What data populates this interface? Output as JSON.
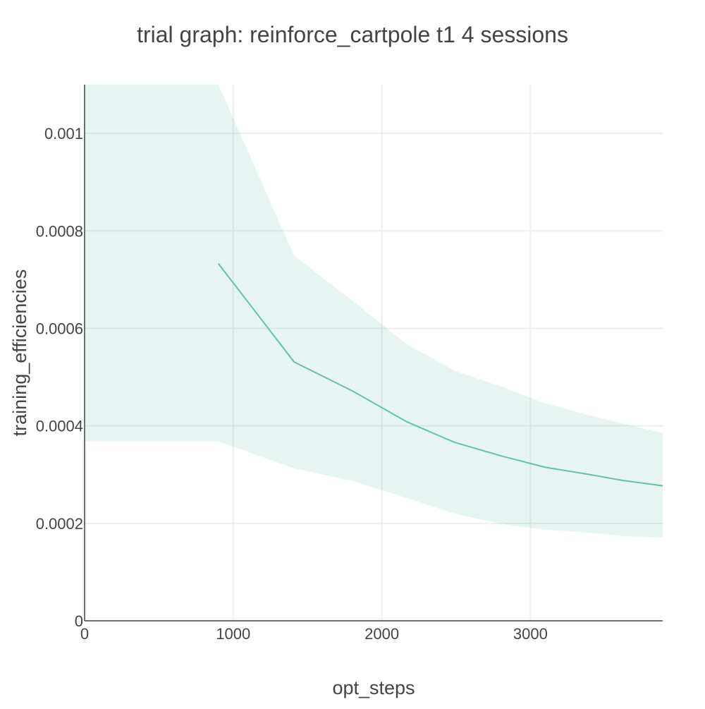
{
  "chart_data": {
    "type": "line",
    "title": "trial graph: reinforce_cartpole t1 4 sessions",
    "xlabel": "opt_steps",
    "ylabel": "training_efficiencies",
    "xlim": [
      0,
      3890
    ],
    "ylim": [
      0,
      0.0011
    ],
    "xticks": [
      {
        "value": 0,
        "label": "0"
      },
      {
        "value": 1000,
        "label": "1000"
      },
      {
        "value": 2000,
        "label": "2000"
      },
      {
        "value": 3000,
        "label": "3000"
      }
    ],
    "yticks": [
      {
        "value": 0,
        "label": "0"
      },
      {
        "value": 0.0002,
        "label": "0.0002"
      },
      {
        "value": 0.0004,
        "label": "0.0004"
      },
      {
        "value": 0.0006,
        "label": "0.0006"
      },
      {
        "value": 0.0008,
        "label": "0.0008"
      },
      {
        "value": 0.001,
        "label": "0.001"
      }
    ],
    "grid": true,
    "colors": {
      "line": "#66c2a5",
      "band": "rgba(102, 194, 165, 0.16)"
    },
    "series": [
      {
        "x": [
          900,
          1410,
          1800,
          2170,
          2490,
          2820,
          3100,
          3380,
          3620,
          3890
        ],
        "y": [
          0.000733,
          0.000531,
          0.000472,
          0.000408,
          0.000366,
          0.000337,
          0.000315,
          0.000301,
          0.000288,
          0.000277
        ],
        "band_x": [
          0,
          900,
          1410,
          1800,
          2170,
          2490,
          2820,
          3100,
          3380,
          3620,
          3890
        ],
        "band_upper": [
          0.0011,
          0.0011,
          0.000749,
          0.000657,
          0.000567,
          0.000513,
          0.000479,
          0.000446,
          0.000423,
          0.000405,
          0.000385
        ],
        "band_lower": [
          0.000368,
          0.000368,
          0.000313,
          0.000287,
          0.000252,
          0.00022,
          0.000198,
          0.000187,
          0.000181,
          0.000174,
          0.000171
        ]
      }
    ]
  }
}
